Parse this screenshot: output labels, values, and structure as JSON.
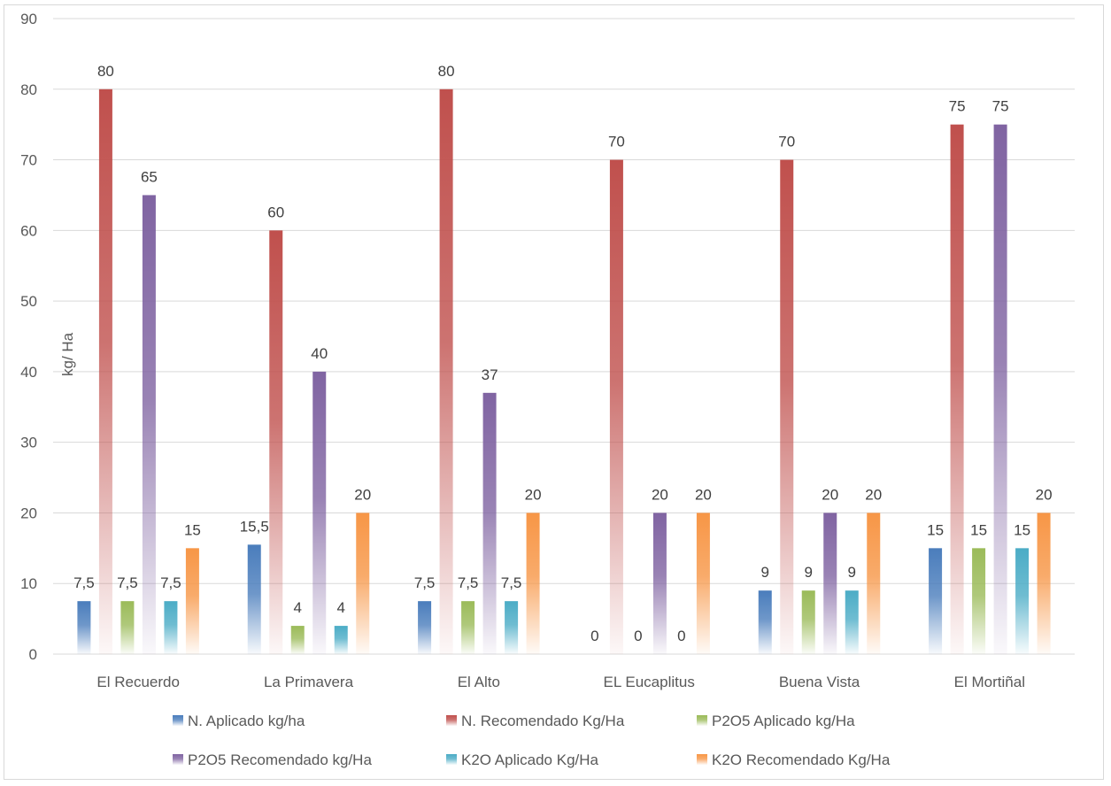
{
  "chart_data": {
    "type": "bar",
    "title": "",
    "xlabel": "",
    "ylabel": "kg/ Ha",
    "ylim": [
      0,
      90
    ],
    "ytick_step": 10,
    "yticks": [
      "0",
      "10",
      "20",
      "30",
      "40",
      "50",
      "60",
      "70",
      "80",
      "90"
    ],
    "grid": true,
    "legend_position": "bottom",
    "categories": [
      "El Recuerdo",
      "La Primavera",
      "El Alto",
      "EL Eucaplitus",
      "Buena Vista",
      "El Mortiñal"
    ],
    "series": [
      {
        "name": "N. Aplicado kg/ha",
        "color": "#4a7dbc",
        "values": [
          7.5,
          15.5,
          7.5,
          0,
          9,
          15
        ],
        "labels": [
          "7,5",
          "15,5",
          "7,5",
          "0",
          "9",
          "15"
        ]
      },
      {
        "name": "N. Recomendado Kg/Ha",
        "color": "#c0504d",
        "values": [
          80,
          60,
          80,
          70,
          70,
          75
        ],
        "labels": [
          "80",
          "60",
          "80",
          "70",
          "70",
          "75"
        ]
      },
      {
        "name": "P2O5 Aplicado kg/Ha",
        "color": "#9bbb59",
        "values": [
          7.5,
          4,
          7.5,
          0,
          9,
          15
        ],
        "labels": [
          "7,5",
          "4",
          "7,5",
          "0",
          "9",
          "15"
        ]
      },
      {
        "name": "P2O5 Recomendado kg/Ha",
        "color": "#8064a2",
        "values": [
          65,
          40,
          37,
          20,
          20,
          75
        ],
        "labels": [
          "65",
          "40",
          "37",
          "20",
          "20",
          "75"
        ]
      },
      {
        "name": "K2O Aplicado Kg/Ha",
        "color": "#4bacc6",
        "values": [
          7.5,
          4,
          7.5,
          0,
          9,
          15
        ],
        "labels": [
          "7,5",
          "4",
          "7,5",
          "0",
          "9",
          "15"
        ]
      },
      {
        "name": "K2O Recomendado Kg/Ha",
        "color": "#f79646",
        "values": [
          15,
          20,
          20,
          20,
          20,
          20
        ],
        "labels": [
          "15",
          "20",
          "20",
          "20",
          "20",
          "20"
        ]
      }
    ]
  }
}
